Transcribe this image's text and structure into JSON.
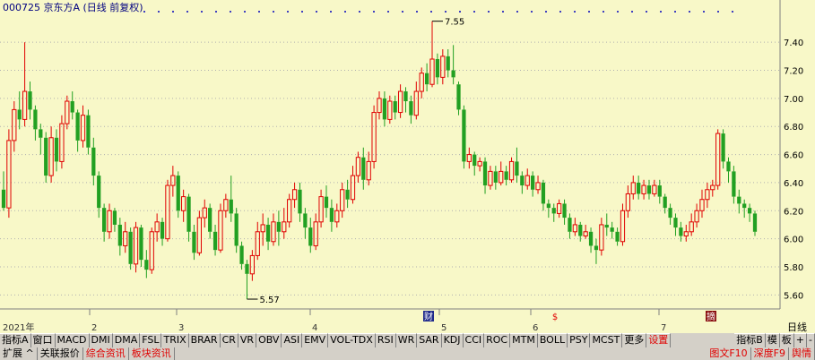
{
  "header": {
    "title": "000725 京东方A (日线 前复权)",
    "year_label": "2021年"
  },
  "axis": {
    "y_ticks": [
      "7.40",
      "7.20",
      "7.00",
      "6.80",
      "6.60",
      "6.40",
      "6.20",
      "6.00",
      "5.80",
      "5.60"
    ],
    "month_labels": [
      "2",
      "3",
      "4",
      "5",
      "6",
      "7"
    ],
    "right_label": "日线"
  },
  "annotations": {
    "high": "7.55",
    "low": "5.57",
    "markers": [
      "财",
      "$",
      "摘"
    ]
  },
  "colors": {
    "up": "#e00000",
    "down": "#22a022",
    "bg": "#f8f8c8",
    "grid": "#b0b0b0"
  },
  "chart_data": {
    "type": "candlestick",
    "title": "000725 京东方A (日线 前复权)",
    "ylim": [
      5.5,
      7.65
    ],
    "yticks": [
      5.6,
      5.8,
      6.0,
      6.2,
      6.4,
      6.6,
      6.8,
      7.0,
      7.2,
      7.4
    ],
    "high_label": 7.55,
    "low_label": 5.57,
    "candles": [
      [
        6.35,
        6.22,
        6.48,
        6.2
      ],
      [
        6.22,
        6.7,
        6.78,
        6.15
      ],
      [
        6.7,
        6.92,
        6.98,
        6.62
      ],
      [
        6.92,
        6.85,
        7.05,
        6.78
      ],
      [
        6.85,
        7.05,
        7.4,
        6.8
      ],
      [
        7.05,
        6.92,
        7.12,
        6.85
      ],
      [
        6.92,
        6.78,
        6.95,
        6.7
      ],
      [
        6.78,
        6.72,
        6.82,
        6.6
      ],
      [
        6.72,
        6.45,
        6.76,
        6.4
      ],
      [
        6.45,
        6.72,
        6.8,
        6.4
      ],
      [
        6.72,
        6.55,
        6.78,
        6.48
      ],
      [
        6.55,
        6.82,
        6.88,
        6.5
      ],
      [
        6.82,
        6.98,
        7.02,
        6.78
      ],
      [
        6.98,
        6.9,
        7.05,
        6.85
      ],
      [
        6.9,
        6.7,
        6.92,
        6.62
      ],
      [
        6.7,
        6.88,
        6.95,
        6.65
      ],
      [
        6.88,
        6.65,
        6.92,
        6.6
      ],
      [
        6.65,
        6.45,
        6.72,
        6.38
      ],
      [
        6.45,
        6.22,
        6.48,
        6.15
      ],
      [
        6.22,
        6.05,
        6.25,
        5.98
      ],
      [
        6.05,
        6.2,
        6.25,
        6.0
      ],
      [
        6.2,
        6.1,
        6.22,
        6.05
      ],
      [
        6.1,
        5.95,
        6.15,
        5.88
      ],
      [
        5.95,
        6.05,
        6.12,
        5.9
      ],
      [
        6.05,
        5.82,
        6.08,
        5.78
      ],
      [
        5.82,
        6.08,
        6.12,
        5.76
      ],
      [
        6.08,
        5.85,
        6.1,
        5.8
      ],
      [
        5.85,
        5.78,
        5.92,
        5.72
      ],
      [
        5.78,
        6.05,
        6.08,
        5.75
      ],
      [
        6.05,
        6.12,
        6.18,
        5.98
      ],
      [
        6.12,
        6.0,
        6.15,
        5.95
      ],
      [
        6.0,
        6.38,
        6.42,
        5.98
      ],
      [
        6.38,
        6.45,
        6.52,
        6.3
      ],
      [
        6.45,
        6.2,
        6.48,
        6.15
      ],
      [
        6.2,
        6.3,
        6.35,
        6.12
      ],
      [
        6.3,
        6.05,
        6.32,
        5.98
      ],
      [
        6.05,
        5.9,
        6.1,
        5.85
      ],
      [
        5.9,
        6.15,
        6.2,
        5.88
      ],
      [
        6.15,
        6.22,
        6.28,
        6.08
      ],
      [
        6.22,
        6.05,
        6.25,
        6.0
      ],
      [
        6.05,
        5.92,
        6.1,
        5.88
      ],
      [
        5.92,
        6.2,
        6.25,
        5.9
      ],
      [
        6.2,
        6.28,
        6.32,
        6.15
      ],
      [
        6.28,
        6.18,
        6.45,
        6.12
      ],
      [
        6.18,
        5.95,
        6.22,
        5.9
      ],
      [
        5.95,
        5.82,
        5.98,
        5.78
      ],
      [
        5.82,
        5.75,
        5.85,
        5.57
      ],
      [
        5.75,
        5.88,
        5.92,
        5.7
      ],
      [
        5.88,
        6.05,
        6.12,
        5.85
      ],
      [
        6.05,
        6.1,
        6.18,
        5.95
      ],
      [
        6.1,
        5.98,
        6.15,
        5.92
      ],
      [
        5.98,
        6.12,
        6.18,
        5.95
      ],
      [
        6.12,
        6.05,
        6.2,
        5.95
      ],
      [
        6.05,
        6.12,
        6.22,
        6.0
      ],
      [
        6.12,
        6.28,
        6.32,
        6.08
      ],
      [
        6.28,
        6.35,
        6.4,
        6.22
      ],
      [
        6.35,
        6.18,
        6.4,
        6.12
      ],
      [
        6.18,
        6.08,
        6.22,
        6.0
      ],
      [
        6.08,
        5.95,
        6.15,
        5.9
      ],
      [
        5.95,
        6.12,
        6.18,
        5.92
      ],
      [
        6.12,
        6.3,
        6.35,
        6.08
      ],
      [
        6.3,
        6.22,
        6.38,
        6.15
      ],
      [
        6.22,
        6.12,
        6.28,
        6.05
      ],
      [
        6.12,
        6.2,
        6.25,
        6.08
      ],
      [
        6.2,
        6.35,
        6.4,
        6.15
      ],
      [
        6.35,
        6.28,
        6.42,
        6.22
      ],
      [
        6.28,
        6.45,
        6.52,
        6.25
      ],
      [
        6.45,
        6.58,
        6.62,
        6.4
      ],
      [
        6.58,
        6.42,
        6.65,
        6.35
      ],
      [
        6.42,
        6.55,
        6.62,
        6.38
      ],
      [
        6.55,
        6.9,
        6.95,
        6.5
      ],
      [
        6.9,
        7.0,
        7.05,
        6.85
      ],
      [
        7.0,
        6.85,
        7.05,
        6.8
      ],
      [
        6.85,
        6.98,
        7.02,
        6.82
      ],
      [
        6.98,
        6.9,
        7.02,
        6.85
      ],
      [
        6.9,
        7.05,
        7.1,
        6.86
      ],
      [
        7.05,
        6.98,
        7.08,
        6.9
      ],
      [
        6.98,
        6.88,
        7.02,
        6.82
      ],
      [
        6.88,
        7.05,
        7.12,
        6.85
      ],
      [
        7.05,
        7.18,
        7.22,
        7.0
      ],
      [
        7.18,
        7.1,
        7.25,
        7.05
      ],
      [
        7.1,
        7.28,
        7.55,
        7.08
      ],
      [
        7.28,
        7.15,
        7.32,
        7.1
      ],
      [
        7.15,
        7.3,
        7.35,
        7.1
      ],
      [
        7.3,
        7.2,
        7.35,
        7.15
      ],
      [
        7.2,
        7.15,
        7.38,
        7.1
      ],
      [
        7.1,
        6.92,
        7.12,
        6.88
      ],
      [
        6.92,
        6.55,
        6.95,
        6.5
      ],
      [
        6.55,
        6.6,
        6.65,
        6.5
      ],
      [
        6.6,
        6.52,
        6.62,
        6.45
      ],
      [
        6.52,
        6.55,
        6.58,
        6.48
      ],
      [
        6.55,
        6.38,
        6.58,
        6.32
      ],
      [
        6.38,
        6.48,
        6.52,
        6.35
      ],
      [
        6.48,
        6.4,
        6.52,
        6.35
      ],
      [
        6.4,
        6.48,
        6.55,
        6.38
      ],
      [
        6.48,
        6.42,
        6.52,
        6.38
      ],
      [
        6.42,
        6.55,
        6.58,
        6.4
      ],
      [
        6.55,
        6.45,
        6.65,
        6.4
      ],
      [
        6.45,
        6.38,
        6.48,
        6.32
      ],
      [
        6.38,
        6.45,
        6.5,
        6.35
      ],
      [
        6.45,
        6.35,
        6.48,
        6.3
      ],
      [
        6.35,
        6.4,
        6.45,
        6.32
      ],
      [
        6.4,
        6.25,
        6.42,
        6.2
      ],
      [
        6.25,
        6.22,
        6.28,
        6.15
      ],
      [
        6.22,
        6.18,
        6.25,
        6.12
      ],
      [
        6.18,
        6.25,
        6.28,
        6.15
      ],
      [
        6.25,
        6.15,
        6.28,
        6.1
      ],
      [
        6.15,
        6.05,
        6.18,
        6.0
      ],
      [
        6.05,
        6.1,
        6.15,
        6.02
      ],
      [
        6.1,
        6.02,
        6.12,
        5.98
      ],
      [
        6.02,
        6.05,
        6.1,
        6.0
      ],
      [
        6.05,
        5.95,
        6.08,
        5.9
      ],
      [
        5.95,
        5.92,
        6.0,
        5.82
      ],
      [
        5.92,
        6.1,
        6.15,
        5.88
      ],
      [
        6.1,
        6.08,
        6.18,
        6.02
      ],
      [
        6.08,
        6.05,
        6.12,
        6.0
      ],
      [
        6.05,
        5.98,
        6.08,
        5.95
      ],
      [
        5.98,
        6.2,
        6.25,
        5.95
      ],
      [
        6.2,
        6.32,
        6.38,
        6.15
      ],
      [
        6.32,
        6.4,
        6.45,
        6.28
      ],
      [
        6.4,
        6.32,
        6.45,
        6.28
      ],
      [
        6.32,
        6.38,
        6.42,
        6.28
      ],
      [
        6.38,
        6.32,
        6.42,
        6.28
      ],
      [
        6.32,
        6.38,
        6.42,
        6.3
      ],
      [
        6.38,
        6.3,
        6.42,
        6.25
      ],
      [
        6.3,
        6.22,
        6.32,
        6.18
      ],
      [
        6.22,
        6.15,
        6.25,
        6.1
      ],
      [
        6.15,
        6.08,
        6.18,
        6.02
      ],
      [
        6.08,
        6.02,
        6.12,
        5.98
      ],
      [
        6.02,
        6.05,
        6.1,
        5.98
      ],
      [
        6.05,
        6.12,
        6.18,
        6.02
      ],
      [
        6.12,
        6.2,
        6.25,
        6.08
      ],
      [
        6.2,
        6.28,
        6.35,
        6.15
      ],
      [
        6.28,
        6.35,
        6.4,
        6.22
      ],
      [
        6.35,
        6.38,
        6.42,
        6.3
      ],
      [
        6.38,
        6.75,
        6.78,
        6.35
      ],
      [
        6.75,
        6.55,
        6.78,
        6.5
      ],
      [
        6.55,
        6.48,
        6.58,
        6.4
      ],
      [
        6.48,
        6.3,
        6.52,
        6.25
      ],
      [
        6.3,
        6.25,
        6.35,
        6.18
      ],
      [
        6.25,
        6.22,
        6.28,
        6.15
      ],
      [
        6.22,
        6.18,
        6.25,
        6.12
      ],
      [
        6.18,
        6.05,
        6.2,
        6.02
      ]
    ]
  },
  "toolbar": {
    "row1": [
      "指标A",
      "窗口",
      "MACD",
      "DMI",
      "DMA",
      "FSL",
      "TRIX",
      "BRAR",
      "CR",
      "VR",
      "OBV",
      "ASI",
      "EMV",
      "VOL-TDX",
      "RSI",
      "WR",
      "SAR",
      "KDJ",
      "CCI",
      "ROC",
      "MTM",
      "BOLL",
      "PSY",
      "MCST",
      "更多",
      "设置"
    ],
    "row1_right": [
      "指标B",
      "模",
      "板",
      "+",
      "-"
    ],
    "row2": [
      "扩展 ^",
      "关联报价",
      "综合资讯",
      "板块资讯"
    ],
    "row2_right": [
      "图文F10",
      "深度F9",
      "舆情"
    ]
  }
}
